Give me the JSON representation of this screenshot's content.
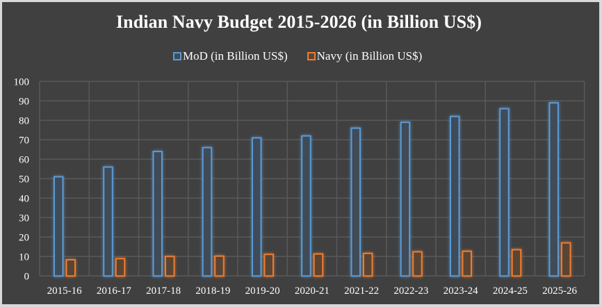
{
  "chart_data": {
    "type": "bar",
    "title": "Indian Navy Budget 2015-2026 (in Billion US$)",
    "xlabel": "",
    "ylabel": "",
    "ylim": [
      0,
      100
    ],
    "yticks": [
      0,
      10,
      20,
      30,
      40,
      50,
      60,
      70,
      80,
      90,
      100
    ],
    "grid": true,
    "legend_position": "top",
    "categories": [
      "2015-16",
      "2016-17",
      "2017-18",
      "2018-19",
      "2019-20",
      "2020-21",
      "2021-22",
      "2022-23",
      "2023-24",
      "2024-25",
      "2025-26"
    ],
    "series": [
      {
        "name": "MoD (in Billion US$)",
        "color": "#5b9bd5",
        "values": [
          51,
          56,
          64,
          66,
          71,
          72,
          76,
          79,
          82,
          86,
          89
        ]
      },
      {
        "name": "Navy (in Billion US$)",
        "color": "#ed7d31",
        "values": [
          8.3,
          8.9,
          10.0,
          10.2,
          11.1,
          11.3,
          11.6,
          12.4,
          12.7,
          13.5,
          17.0
        ]
      }
    ]
  },
  "colors": {
    "background": "#404040",
    "outer": "#d9d9d9",
    "grid": "#595959",
    "text": "#ffffff"
  }
}
